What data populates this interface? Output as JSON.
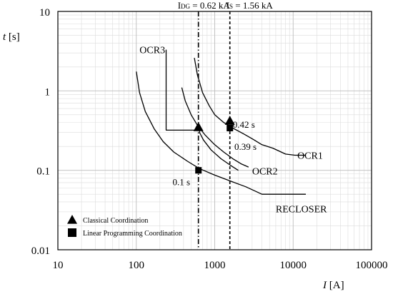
{
  "chart_data": {
    "type": "line",
    "xscale": "log",
    "yscale": "log",
    "xlim": [
      10,
      100000
    ],
    "ylim": [
      0.01,
      10
    ],
    "x_ticks": [
      {
        "value": 10,
        "label": "10"
      },
      {
        "value": 100,
        "label": "100"
      },
      {
        "value": 1000,
        "label": "1000"
      },
      {
        "value": 10000,
        "label": "10000"
      },
      {
        "value": 100000,
        "label": "100000"
      }
    ],
    "y_ticks": [
      {
        "value": 0.01,
        "label": "0.01"
      },
      {
        "value": 0.1,
        "label": "0.1"
      },
      {
        "value": 1,
        "label": "1"
      },
      {
        "value": 10,
        "label": "10"
      }
    ],
    "xlabel_italic": "I",
    "xlabel_unit": " [A]",
    "ylabel_italic": "t",
    "ylabel_unit": " [s]",
    "grid": true,
    "series": [
      {
        "name": "OCR1",
        "x": [
          550,
          600,
          700,
          850,
          1000,
          1300,
          1700,
          2300,
          3000,
          4000,
          5500,
          8000,
          10500,
          14500
        ],
        "y": [
          2.6,
          1.6,
          0.95,
          0.65,
          0.5,
          0.4,
          0.34,
          0.29,
          0.25,
          0.21,
          0.19,
          0.16,
          0.155,
          0.155
        ]
      },
      {
        "name": "OCR2",
        "x": [
          380,
          420,
          500,
          600,
          750,
          1000,
          1300,
          1700,
          2200,
          2700
        ],
        "y": [
          1.1,
          0.75,
          0.5,
          0.37,
          0.28,
          0.21,
          0.17,
          0.14,
          0.12,
          0.11
        ]
      },
      {
        "name": "OCR3",
        "x": [
          240,
          240,
          640,
          640,
          720,
          900,
          1200,
          1600,
          2000
        ],
        "y": [
          3.3,
          0.32,
          0.32,
          0.3,
          0.24,
          0.18,
          0.14,
          0.115,
          0.1
        ]
      },
      {
        "name": "RECLOSER",
        "x": [
          100,
          110,
          130,
          170,
          220,
          300,
          450,
          640,
          1000,
          1600,
          2500,
          4000,
          10000,
          14500
        ],
        "y": [
          1.75,
          0.95,
          0.55,
          0.33,
          0.23,
          0.17,
          0.13,
          0.105,
          0.087,
          0.073,
          0.062,
          0.05,
          0.05,
          0.05
        ]
      }
    ],
    "curve_labels": [
      {
        "text": "OCR1",
        "x": 11300,
        "y": 0.155
      },
      {
        "text": "OCR2",
        "x": 3000,
        "y": 0.098
      },
      {
        "text": "OCR3",
        "x": 110,
        "y": 3.3
      },
      {
        "text": "RECLOSER",
        "x": 6000,
        "y": 0.033
      }
    ],
    "vertical_lines": [
      {
        "label": "I_DG = 0.62 kA",
        "sub": "DG",
        "prefix": "I",
        "suffix": " = 0.62 kA",
        "x": 620,
        "style": "dashdot"
      },
      {
        "label": "I_S = 1.56 kA",
        "sub": "S",
        "prefix": "I",
        "suffix": " = 1.56 kA",
        "x": 1560,
        "style": "dashed"
      }
    ],
    "markers": [
      {
        "series": "Classical Coordination",
        "shape": "triangle",
        "x": 620,
        "y": 0.35
      },
      {
        "series": "Classical Coordination",
        "shape": "triangle",
        "x": 1560,
        "y": 0.42
      },
      {
        "series": "Linear Programming Coordination",
        "shape": "square",
        "x": 620,
        "y": 0.1
      },
      {
        "series": "Linear Programming Coordination",
        "shape": "square",
        "x": 1560,
        "y": 0.34
      }
    ],
    "annotations": [
      {
        "text": "0.42 s",
        "x": 1700,
        "y": 0.38
      },
      {
        "text": "0.39 s",
        "x": 1780,
        "y": 0.2
      },
      {
        "text": "0.1 s",
        "x": 290,
        "y": 0.072
      }
    ],
    "legend": {
      "placement": "bottom-left",
      "items": [
        {
          "shape": "triangle",
          "label": "Classical Coordination"
        },
        {
          "shape": "square",
          "label": "Linear Programming Coordination"
        }
      ]
    }
  }
}
